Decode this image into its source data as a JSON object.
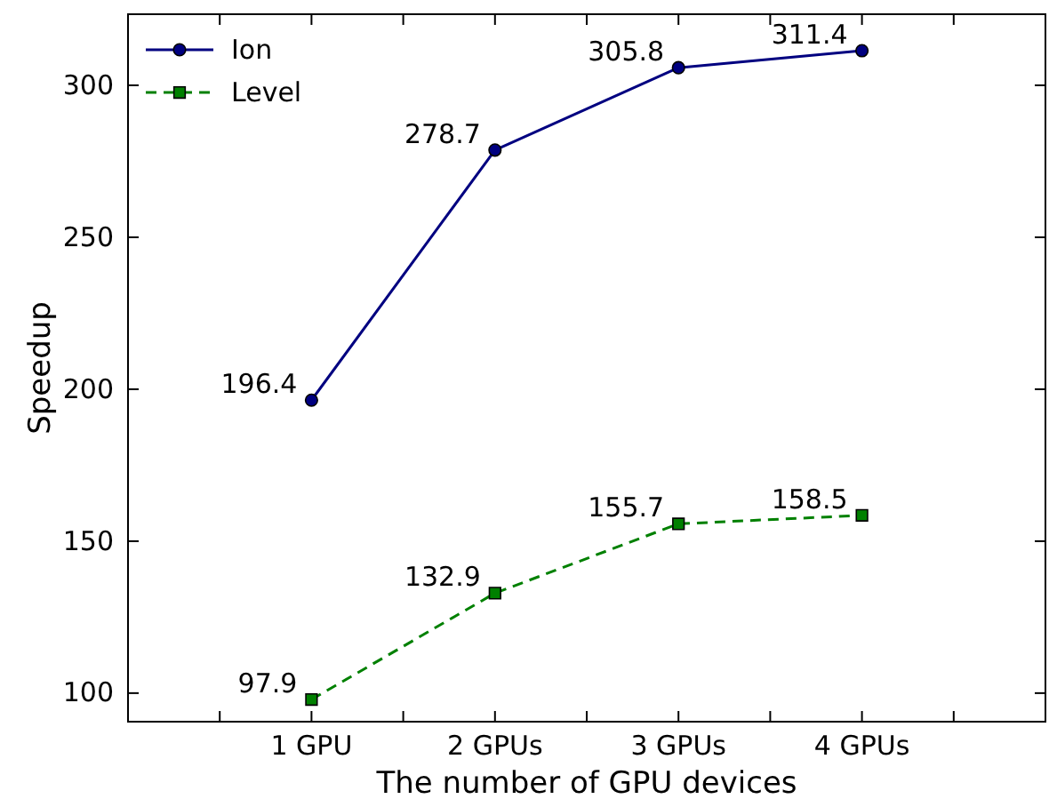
{
  "chart_data": {
    "type": "line",
    "xlabel": "The number of GPU devices",
    "ylabel": "Speedup",
    "categories": [
      null,
      "1 GPU",
      "2 GPUs",
      "3 GPUs",
      "4 GPUs",
      null
    ],
    "series": [
      {
        "name": "Ion",
        "color": "#000080",
        "marker": "circle",
        "line_style": "solid",
        "values": [
          null,
          196.4,
          278.7,
          305.8,
          311.4,
          null
        ]
      },
      {
        "name": "Level",
        "color": "#008000",
        "marker": "square",
        "line_style": "dashed",
        "values": [
          null,
          97.9,
          132.9,
          155.7,
          158.5,
          null
        ]
      }
    ],
    "ylim": [
      90.6,
      323.4
    ],
    "yticks": [
      100,
      150,
      200,
      250,
      300
    ],
    "data_labels": true,
    "legend": "top left",
    "grid": false
  }
}
